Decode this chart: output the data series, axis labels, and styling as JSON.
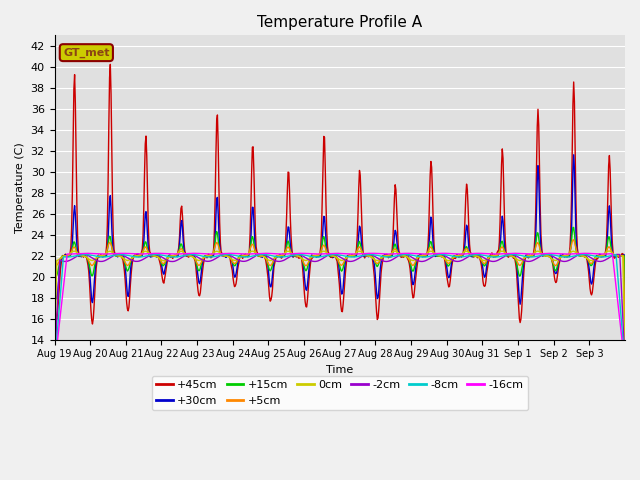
{
  "title": "Temperature Profile A",
  "xlabel": "Time",
  "ylabel": "Temperature (C)",
  "ylim": [
    14,
    43
  ],
  "yticks": [
    14,
    16,
    18,
    20,
    22,
    24,
    26,
    28,
    30,
    32,
    34,
    36,
    38,
    40,
    42
  ],
  "legend_label": "GT_met",
  "legend_box_facecolor": "#cccc00",
  "legend_box_edgecolor": "#8b0000",
  "legend_box_textcolor": "#8b4513",
  "series_labels": [
    "+45cm",
    "+30cm",
    "+15cm",
    "+5cm",
    "0cm",
    "-2cm",
    "-8cm",
    "-16cm"
  ],
  "series_colors": [
    "#cc0000",
    "#0000cc",
    "#00cc00",
    "#ff8800",
    "#cccc00",
    "#9900cc",
    "#00cccc",
    "#ff00ff"
  ],
  "background_color": "#e0e0e0",
  "grid_color": "#ffffff",
  "fig_facecolor": "#f0f0f0",
  "tick_labels": [
    "Aug 19",
    "Aug 20",
    "Aug 21",
    "Aug 22",
    "Aug 23",
    "Aug 24",
    "Aug 25",
    "Aug 26",
    "Aug 27",
    "Aug 28",
    "Aug 29",
    "Aug 30",
    "Aug 31",
    "Sep 1",
    "Sep 2",
    "Sep 3"
  ],
  "figsize": [
    6.4,
    4.8
  ],
  "dpi": 100,
  "title_fontsize": 11,
  "line_width": 1.0
}
